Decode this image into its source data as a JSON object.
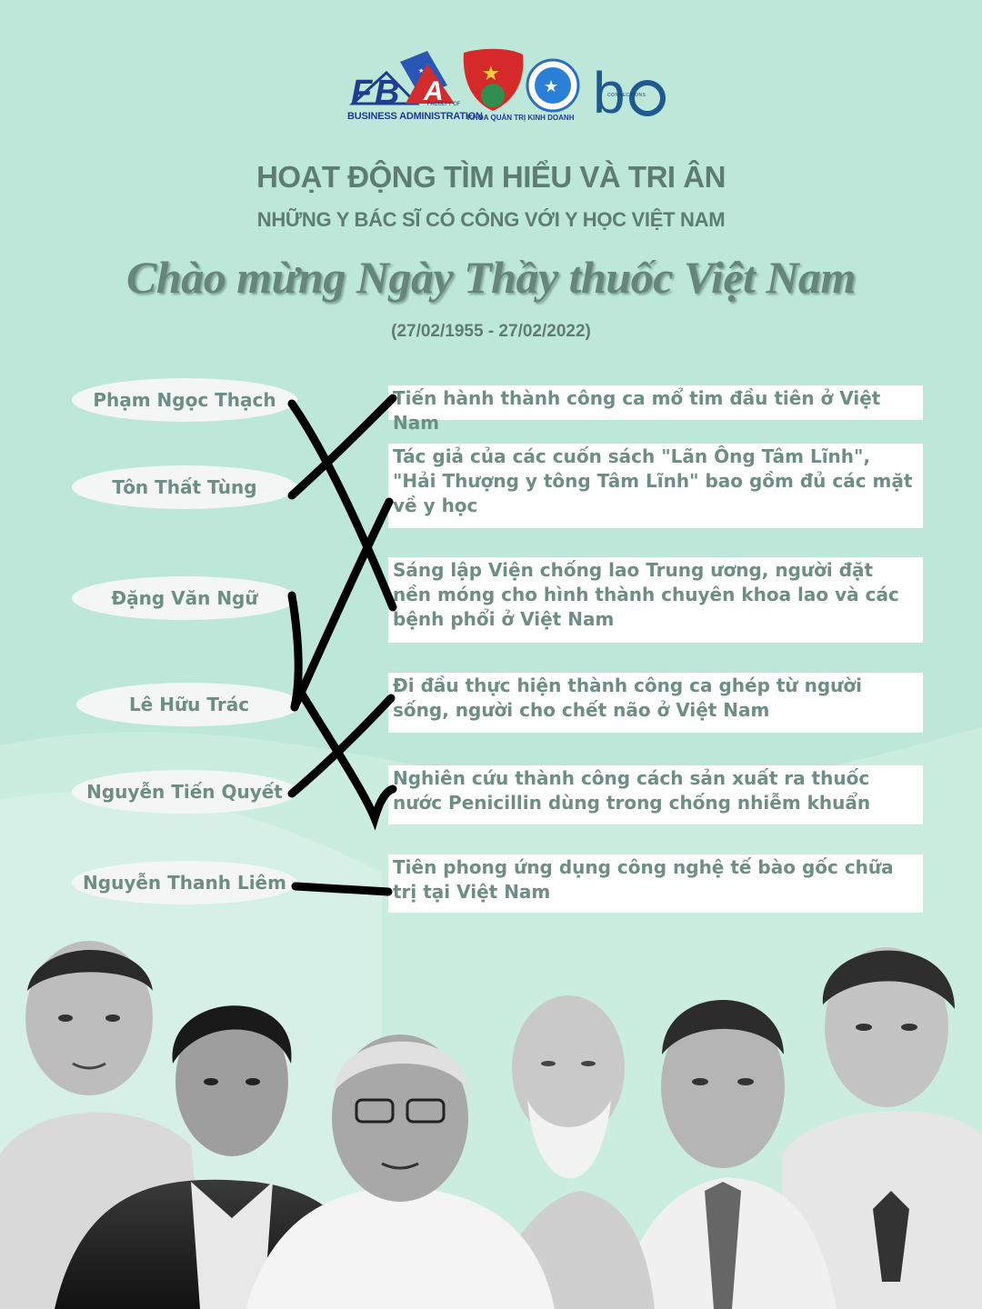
{
  "logos": {
    "fba_text": "BUSINESS ADMINISTRATION",
    "fba_small": "FACULTY OF",
    "khoa_text": "KHOA QUẢN TRỊ KINH DOANH",
    "ba_connections": "CONNECTIONS"
  },
  "header": {
    "title_line1": "HOẠT ĐỘNG TÌM HIỂU VÀ TRI ÂN",
    "title_line2": "NHỮNG Y BÁC SĨ CÓ CÔNG VỚI Y HỌC VIỆT NAM",
    "script_title": "Chào mừng Ngày Thầy thuốc Việt Nam",
    "dates": "(27/02/1955 - 27/02/2022)"
  },
  "names": [
    "Phạm Ngọc Thạch",
    "Tôn Thất Tùng",
    "Đặng Văn Ngữ",
    "Lê Hữu Trác",
    "Nguyễn Tiến Quyết",
    "Nguyễn Thanh Liêm"
  ],
  "descriptions": [
    "Tiến hành thành công ca mổ tim đầu tiên ở Việt Nam",
    "Tác giả của các cuốn sách \"Lãn Ông Tâm Lĩnh\", \"Hải Thượng y tông Tâm Lĩnh\" bao gồm đủ các mặt về y học",
    "Sáng lập Viện chống lao Trung ương, người đặt nền móng cho hình thành chuyên khoa lao và các bệnh phổi ở Việt Nam",
    "Đi đầu thực hiện thành công ca ghép từ người sống, người cho chết não ở Việt Nam",
    "Nghiên cứu thành công cách sản xuất ra thuốc nước Penicillin dùng trong chống nhiễm khuẩn",
    "Tiên phong ứng dụng công nghệ tế bào gốc chữa trị tại Việt Nam"
  ],
  "colors": {
    "background": "#bde8d9",
    "text": "#6d8e84",
    "heading": "#5f7c73",
    "line": "#000000"
  }
}
